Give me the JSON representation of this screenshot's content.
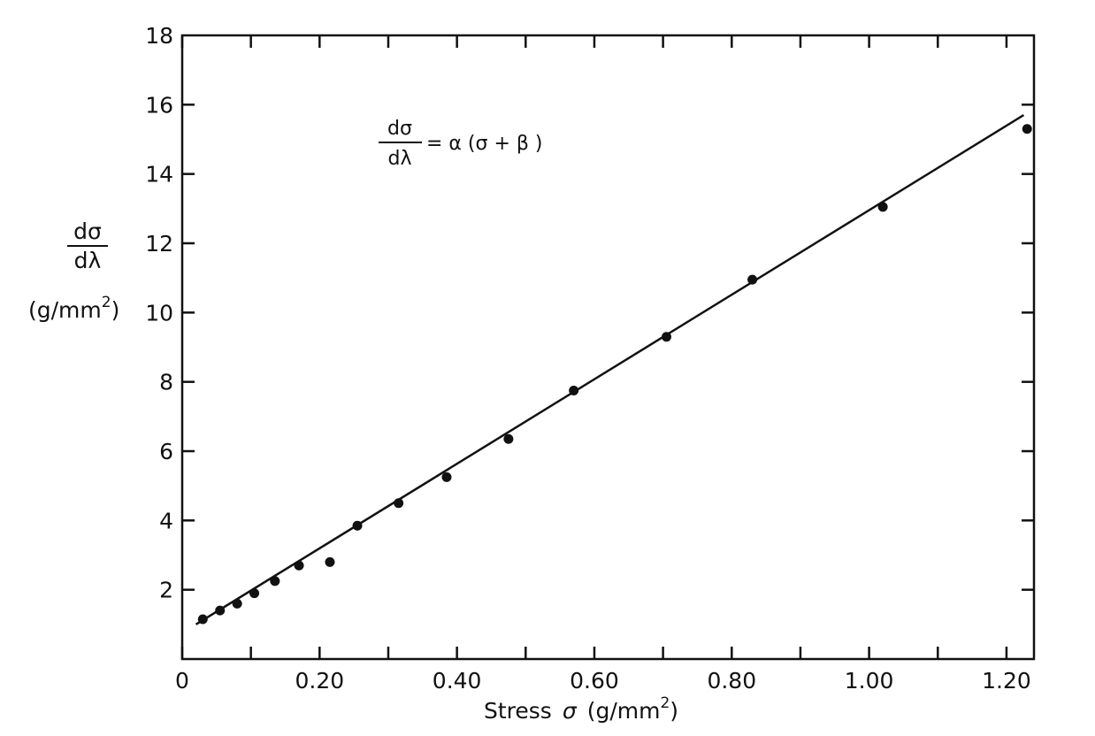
{
  "chart_data": {
    "type": "scatter",
    "xlabel_main": "Stress",
    "xlabel_symbol": "σ",
    "xlabel_unit": "(g/mm",
    "xlabel_unit_exp": "2",
    "xlabel_unit_close": ")",
    "ylabel_num": "dσ",
    "ylabel_den": "dλ",
    "ylabel_unit": "(g/mm",
    "ylabel_unit_exp": "2",
    "ylabel_unit_close": ")",
    "equation": {
      "lhs_num": "dσ",
      "lhs_den": "dλ",
      "rhs": "= α (σ + β )"
    },
    "xlim": [
      0,
      1.24
    ],
    "ylim": [
      0,
      18
    ],
    "x_ticks": [
      0,
      0.1,
      0.2,
      0.3,
      0.4,
      0.5,
      0.6,
      0.7,
      0.8,
      0.9,
      1.0,
      1.1,
      1.2
    ],
    "x_tick_labels": [
      {
        "value": 0,
        "label": "0"
      },
      {
        "value": 0.2,
        "label": "0.20"
      },
      {
        "value": 0.4,
        "label": "0.40"
      },
      {
        "value": 0.6,
        "label": "0.60"
      },
      {
        "value": 0.8,
        "label": "0.80"
      },
      {
        "value": 1.0,
        "label": "1.00"
      },
      {
        "value": 1.2,
        "label": "1.20"
      }
    ],
    "y_tick_labels": [
      {
        "value": 2,
        "label": "2"
      },
      {
        "value": 4,
        "label": "4"
      },
      {
        "value": 6,
        "label": "6"
      },
      {
        "value": 8,
        "label": "8"
      },
      {
        "value": 10,
        "label": "10"
      },
      {
        "value": 12,
        "label": "12"
      },
      {
        "value": 14,
        "label": "14"
      },
      {
        "value": 16,
        "label": "16"
      },
      {
        "value": 18,
        "label": "18"
      }
    ],
    "grid": false,
    "points": [
      {
        "x": 0.03,
        "y": 1.15
      },
      {
        "x": 0.055,
        "y": 1.4
      },
      {
        "x": 0.08,
        "y": 1.6
      },
      {
        "x": 0.105,
        "y": 1.9
      },
      {
        "x": 0.135,
        "y": 2.25
      },
      {
        "x": 0.17,
        "y": 2.7
      },
      {
        "x": 0.215,
        "y": 2.8
      },
      {
        "x": 0.255,
        "y": 3.85
      },
      {
        "x": 0.315,
        "y": 4.5
      },
      {
        "x": 0.385,
        "y": 5.25
      },
      {
        "x": 0.475,
        "y": 6.35
      },
      {
        "x": 0.57,
        "y": 7.75
      },
      {
        "x": 0.705,
        "y": 9.3
      },
      {
        "x": 0.83,
        "y": 10.95
      },
      {
        "x": 1.02,
        "y": 13.05
      },
      {
        "x": 1.23,
        "y": 15.3
      }
    ],
    "fit_line": {
      "x": [
        0.02,
        1.225
      ],
      "y": [
        1.0,
        15.7
      ]
    }
  }
}
